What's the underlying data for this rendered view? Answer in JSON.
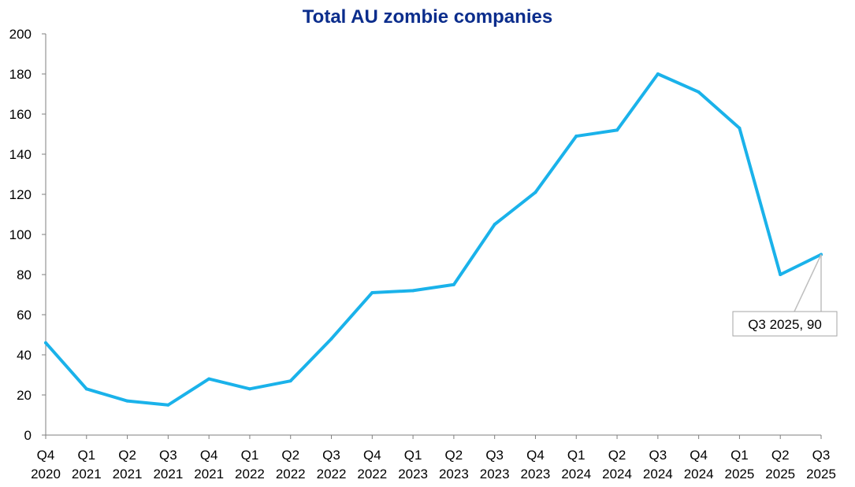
{
  "chart_data": {
    "type": "line",
    "title": "Total AU zombie companies",
    "xlabel": "",
    "ylabel": "",
    "categories": [
      [
        "Q4",
        "2020"
      ],
      [
        "Q1",
        "2021"
      ],
      [
        "Q2",
        "2021"
      ],
      [
        "Q3",
        "2021"
      ],
      [
        "Q4",
        "2021"
      ],
      [
        "Q1",
        "2022"
      ],
      [
        "Q2",
        "2022"
      ],
      [
        "Q3",
        "2022"
      ],
      [
        "Q4",
        "2022"
      ],
      [
        "Q1",
        "2023"
      ],
      [
        "Q2",
        "2023"
      ],
      [
        "Q3",
        "2023"
      ],
      [
        "Q4",
        "2023"
      ],
      [
        "Q1",
        "2024"
      ],
      [
        "Q2",
        "2024"
      ],
      [
        "Q3",
        "2024"
      ],
      [
        "Q4",
        "2024"
      ],
      [
        "Q1",
        "2025"
      ],
      [
        "Q2",
        "2025"
      ],
      [
        "Q3",
        "2025"
      ]
    ],
    "series": [
      {
        "values": [
          46,
          23,
          17,
          15,
          28,
          23,
          27,
          48,
          71,
          72,
          75,
          105,
          121,
          149,
          152,
          180,
          171,
          153,
          80,
          90
        ],
        "color": "#1ab2ea"
      }
    ],
    "ylim": [
      0,
      200
    ],
    "yticks": [
      0,
      20,
      40,
      60,
      80,
      100,
      120,
      140,
      160,
      180,
      200
    ],
    "grid": false,
    "legend": "none",
    "annotation": {
      "text": "Q3 2025, 90",
      "category_index": 19
    }
  }
}
